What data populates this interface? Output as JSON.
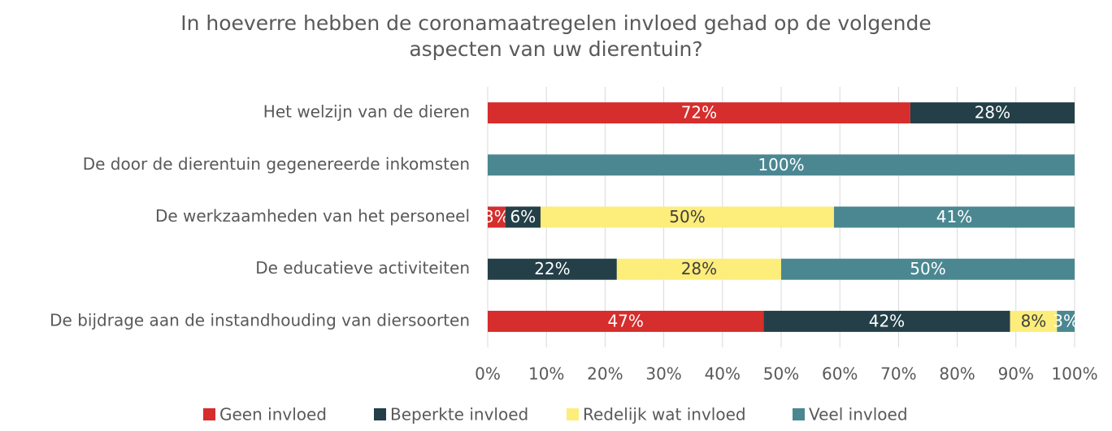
{
  "chart_data": {
    "type": "stacked-barh",
    "title": [
      "In hoeverre hebben de coronamaatregelen invloed gehad op de volgende",
      "aspecten van uw dierentuin?"
    ],
    "categories": [
      "Het welzijn van de dieren",
      "De door de dierentuin gegenereerde inkomsten",
      "De werkzaamheden van het personeel",
      "De educatieve activiteiten",
      "De bijdrage aan de instandhouding van diersoorten"
    ],
    "series": [
      {
        "name": "Geen invloed",
        "color": "#d62d2d",
        "values": [
          72,
          0,
          3,
          0,
          47
        ],
        "value_labels": [
          "72%",
          null,
          "3%",
          null,
          "47%"
        ]
      },
      {
        "name": "Beperkte invloed",
        "color": "#243f47",
        "values": [
          28,
          0,
          6,
          22,
          42
        ],
        "value_labels": [
          "28%",
          null,
          "6%",
          "22%",
          "42%"
        ]
      },
      {
        "name": "Redelijk wat invloed",
        "color": "#fded7a",
        "values": [
          0,
          0,
          50,
          28,
          8
        ],
        "value_labels": [
          null,
          null,
          "50%",
          "28%",
          "8%"
        ]
      },
      {
        "name": "Veel invloed",
        "color": "#4a8791",
        "values": [
          0,
          100,
          41,
          50,
          3
        ],
        "value_labels": [
          null,
          "100%",
          "41%",
          "50%",
          "3%"
        ]
      }
    ],
    "xlim": [
      0,
      100
    ],
    "xticks": [
      {
        "value": 0,
        "label": "0%"
      },
      {
        "value": 10,
        "label": "10%"
      },
      {
        "value": 20,
        "label": "20%"
      },
      {
        "value": 30,
        "label": "30%"
      },
      {
        "value": 40,
        "label": "40%"
      },
      {
        "value": 50,
        "label": "50%"
      },
      {
        "value": 60,
        "label": "60%"
      },
      {
        "value": 70,
        "label": "70%"
      },
      {
        "value": 80,
        "label": "80%"
      },
      {
        "value": 90,
        "label": "90%"
      },
      {
        "value": 100,
        "label": "100%"
      }
    ],
    "grid": true,
    "legend": "bottom"
  }
}
